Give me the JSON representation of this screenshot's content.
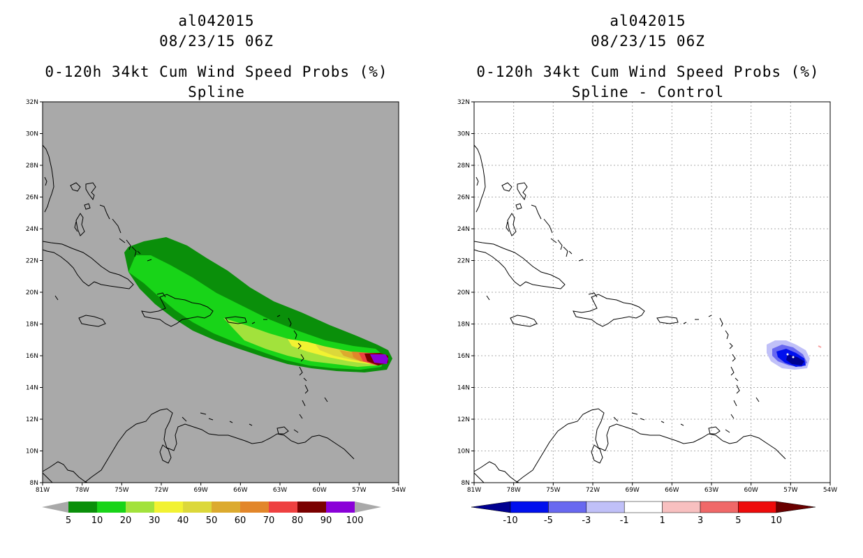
{
  "left_panel": {
    "title_line1": "al042015",
    "title_line2": "08/23/15 06Z",
    "title_line3": "0-120h 34kt Cum Wind Speed Probs (%)",
    "title_line4": "Spline",
    "lat_labels": [
      "32N",
      "30N",
      "28N",
      "26N",
      "24N",
      "22N",
      "20N",
      "18N",
      "16N",
      "14N",
      "12N",
      "10N",
      "8N"
    ],
    "lon_labels": [
      "81W",
      "78W",
      "75W",
      "72W",
      "69W",
      "66W",
      "63W",
      "60W",
      "57W",
      "54W"
    ],
    "colorbar": {
      "labels": [
        "5",
        "10",
        "20",
        "30",
        "40",
        "50",
        "60",
        "70",
        "80",
        "90",
        "100"
      ],
      "colors": [
        "#0a8f0a",
        "#18d418",
        "#a2e23c",
        "#f2f232",
        "#dcd83a",
        "#dcaa2e",
        "#e2862a",
        "#ee4040",
        "#7a0000",
        "#8a00d8"
      ]
    },
    "background_color": "#a9a9a9"
  },
  "right_panel": {
    "title_line1": "al042015",
    "title_line2": "08/23/15 06Z",
    "title_line3": "0-120h 34kt Cum Wind Speed Probs (%)",
    "title_line4": "Spline - Control",
    "lat_labels": [
      "32N",
      "30N",
      "28N",
      "26N",
      "24N",
      "22N",
      "20N",
      "18N",
      "16N",
      "14N",
      "12N",
      "10N",
      "8N"
    ],
    "lon_labels": [
      "81W",
      "78W",
      "75W",
      "72W",
      "69W",
      "66W",
      "63W",
      "60W",
      "57W",
      "54W"
    ],
    "colorbar": {
      "labels": [
        "-10",
        "-5",
        "-3",
        "-1",
        "1",
        "3",
        "5",
        "10"
      ],
      "colors": [
        "#000090",
        "#0010ee",
        "#6868f0",
        "#c0c0f8",
        "#ffffff",
        "#f8c0c0",
        "#f06868",
        "#ee0a0a",
        "#6a0000"
      ]
    },
    "background_color": "#ffffff"
  }
}
